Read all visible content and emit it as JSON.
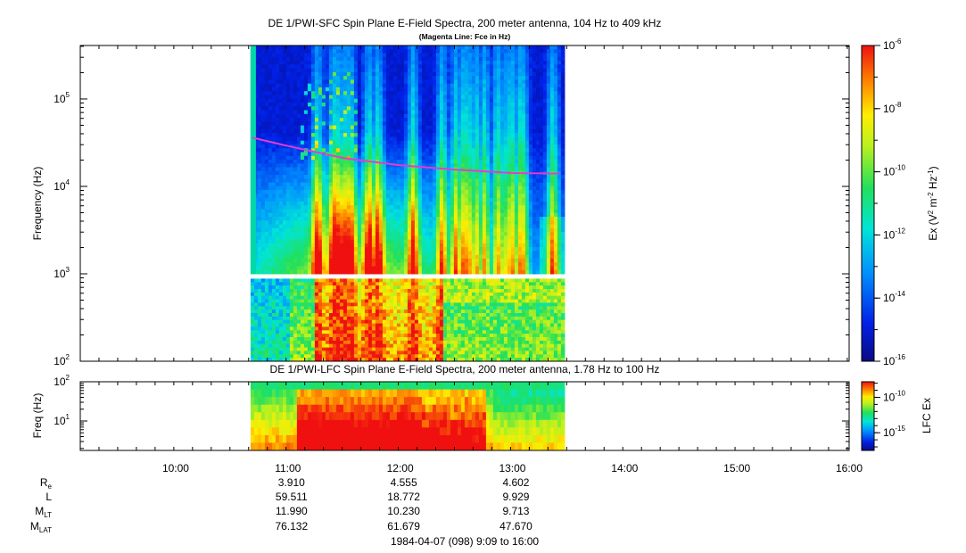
{
  "chart_data": [
    {
      "type": "heatmap",
      "title": "DE 1/PWI-SFC  Spin Plane E-Field Spectra, 200 meter antenna, 104 Hz to 409 kHz",
      "subtitle": "(Magenta Line: Fce in Hz)",
      "ylabel": "Frequency (Hz)",
      "y_scale": "log",
      "ylim": [
        100,
        409000
      ],
      "xlim": [
        "09:09",
        "16:00"
      ],
      "x_ticks": [
        "10:00",
        "11:00",
        "12:00",
        "13:00",
        "14:00",
        "15:00",
        "16:00"
      ],
      "y_ticks": [
        {
          "base": "10",
          "exp": "5"
        },
        {
          "base": "10",
          "exp": "4"
        },
        {
          "base": "10",
          "exp": "3"
        },
        {
          "base": "10",
          "exp": "2"
        }
      ],
      "data_time_range": [
        "10:40",
        "13:26"
      ],
      "fce_line": {
        "label": "Fce in Hz",
        "color": "#e63ad2",
        "points": [
          [
            "10:41",
            36000
          ],
          [
            "11:00",
            29000
          ],
          [
            "11:30",
            21000
          ],
          [
            "12:00",
            17500
          ],
          [
            "12:30",
            15500
          ],
          [
            "13:00",
            14200
          ],
          [
            "13:25",
            14000
          ]
        ]
      },
      "colorbar": {
        "label_main": "Ex (V",
        "label_mid": " m",
        "label_end": " Hz",
        "label_sup1": "2",
        "label_sup2": "-2",
        "label_sup3": "-1",
        "label_close": ")",
        "scale": "log",
        "range": [
          1e-16,
          1e-06
        ],
        "ticks": [
          {
            "base": "10",
            "exp": "-6"
          },
          {
            "base": "10",
            "exp": "-8"
          },
          {
            "base": "10",
            "exp": "-10"
          },
          {
            "base": "10",
            "exp": "-12"
          },
          {
            "base": "10",
            "exp": "-14"
          },
          {
            "base": "10",
            "exp": "-16"
          }
        ]
      }
    },
    {
      "type": "heatmap",
      "title": "DE 1/PWI-LFC  Spin Plane E-Field Spectra, 200 meter antenna, 1.78 Hz to 100 Hz",
      "ylabel": "Freq (Hz)",
      "y_scale": "log",
      "ylim": [
        1.78,
        100
      ],
      "y_ticks": [
        {
          "base": "10",
          "exp": "2"
        },
        {
          "base": "10",
          "exp": "1"
        }
      ],
      "data_time_range": [
        "10:40",
        "13:26"
      ],
      "colorbar": {
        "label": "LFC Ex",
        "scale": "log",
        "ticks": [
          {
            "base": "10",
            "exp": "-10"
          },
          {
            "base": "10",
            "exp": "-15"
          }
        ]
      }
    }
  ],
  "ephemeris": {
    "rows": [
      {
        "label": "R",
        "sub": "e",
        "values": [
          "3.910",
          "4.555",
          "4.602"
        ]
      },
      {
        "label": "L",
        "sub": "",
        "values": [
          "59.511",
          "18.772",
          "9.929"
        ]
      },
      {
        "label": "M",
        "sub": "LT",
        "values": [
          "11.990",
          "10.230",
          "9.713"
        ]
      },
      {
        "label": "M",
        "sub": "LAT",
        "values": [
          "76.132",
          "61.679",
          "47.670"
        ]
      }
    ],
    "times": [
      "11:00",
      "12:00",
      "13:00"
    ]
  },
  "footer": "1984-04-07 (098) 9:09 to 16:00"
}
